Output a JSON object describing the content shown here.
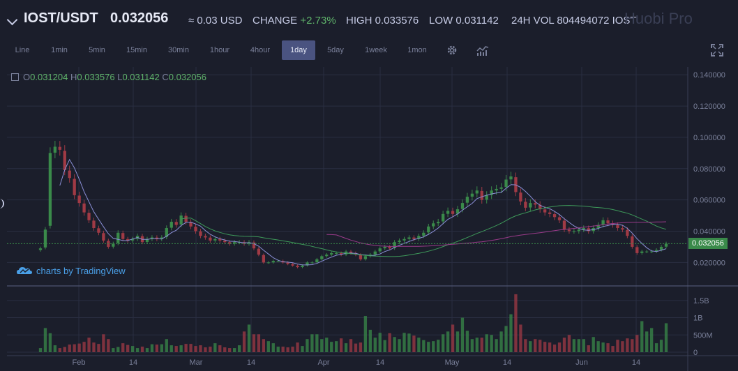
{
  "header": {
    "pair": "IOST/USDT",
    "price": "0.032056",
    "usd_approx": "≈ 0.03 USD",
    "change_label": "CHANGE",
    "change_value": "+2.73%",
    "high_label": "HIGH",
    "high_value": "0.033576",
    "low_label": "LOW",
    "low_value": "0.031142",
    "vol_label": "24H VOL",
    "vol_value": "804494072 IOST",
    "logo": "Huobi Pro"
  },
  "toolbar": {
    "timeframes": [
      "Line",
      "1min",
      "5min",
      "15min",
      "30min",
      "1hour",
      "4hour",
      "1day",
      "5day",
      "1week",
      "1mon"
    ],
    "active": "1day",
    "settings_icon": "gear-icon",
    "indicators_icon": "indicators-icon",
    "fullscreen_icon": "fullscreen-icon"
  },
  "ohlc": {
    "o_label": "O",
    "o_value": "0.031204",
    "h_label": "H",
    "h_value": "0.033576",
    "l_label": "L",
    "l_value": "0.031142",
    "c_label": "C",
    "c_value": "0.032056"
  },
  "branding": {
    "text": "charts by TradingView",
    "icon": "tradingview-cloud-icon"
  },
  "colors": {
    "up": "#3a8a4a",
    "down": "#a03a45",
    "ma_fast": "#8a8fd6",
    "ma_mid": "#3e9a5a",
    "ma_slow": "#9a3a8a",
    "grid": "#2a2e42"
  },
  "chart_data": {
    "type": "line",
    "price_axis_ticks": [
      "0.140000",
      "0.120000",
      "0.100000",
      "0.080000",
      "0.060000",
      "0.040000",
      "0.020000"
    ],
    "volume_axis_ticks": [
      "1.5B",
      "1B",
      "500M",
      "0"
    ],
    "x_ticks": [
      "Feb",
      "14",
      "Mar",
      "14",
      "Apr",
      "14",
      "May",
      "14",
      "Jun",
      "14"
    ],
    "current_price": "0.032056",
    "ylim": [
      0.005,
      0.145
    ],
    "close": [
      0.029,
      0.041,
      0.09,
      0.094,
      0.092,
      0.079,
      0.074,
      0.063,
      0.058,
      0.052,
      0.047,
      0.042,
      0.039,
      0.034,
      0.03,
      0.032,
      0.039,
      0.035,
      0.034,
      0.035,
      0.037,
      0.033,
      0.035,
      0.036,
      0.035,
      0.036,
      0.042,
      0.046,
      0.044,
      0.05,
      0.046,
      0.043,
      0.04,
      0.037,
      0.036,
      0.034,
      0.035,
      0.034,
      0.033,
      0.032,
      0.033,
      0.033,
      0.032,
      0.033,
      0.029,
      0.025,
      0.02,
      0.02,
      0.021,
      0.021,
      0.02,
      0.019,
      0.018,
      0.017,
      0.018,
      0.02,
      0.02,
      0.022,
      0.024,
      0.025,
      0.026,
      0.026,
      0.025,
      0.027,
      0.026,
      0.025,
      0.022,
      0.024,
      0.025,
      0.027,
      0.029,
      0.03,
      0.029,
      0.033,
      0.034,
      0.035,
      0.036,
      0.035,
      0.037,
      0.039,
      0.043,
      0.045,
      0.046,
      0.051,
      0.053,
      0.051,
      0.054,
      0.058,
      0.062,
      0.064,
      0.066,
      0.06,
      0.063,
      0.066,
      0.067,
      0.068,
      0.073,
      0.075,
      0.065,
      0.059,
      0.055,
      0.058,
      0.057,
      0.054,
      0.052,
      0.051,
      0.049,
      0.047,
      0.041,
      0.04,
      0.04,
      0.041,
      0.042,
      0.04,
      0.042,
      0.044,
      0.047,
      0.045,
      0.044,
      0.042,
      0.041,
      0.037,
      0.03,
      0.026,
      0.027,
      0.027,
      0.027,
      0.028,
      0.03,
      0.032
    ],
    "volume_M": [
      120,
      700,
      550,
      200,
      120,
      150,
      220,
      230,
      250,
      300,
      420,
      280,
      240,
      520,
      380,
      120,
      150,
      260,
      210,
      180,
      120,
      160,
      120,
      230,
      220,
      230,
      380,
      200,
      180,
      200,
      240,
      240,
      180,
      200,
      140,
      160,
      260,
      200,
      140,
      120,
      120,
      200,
      600,
      800,
      520,
      520,
      380,
      320,
      260,
      160,
      160,
      140,
      160,
      280,
      180,
      380,
      520,
      520,
      380,
      420,
      300,
      320,
      400,
      260,
      380,
      250,
      280,
      1050,
      650,
      420,
      560,
      350,
      550,
      440,
      380,
      560,
      540,
      480,
      420,
      350,
      300,
      320,
      360,
      520,
      600,
      800,
      600,
      1000,
      620,
      380,
      420,
      420,
      520,
      500,
      380,
      600,
      760,
      1100,
      1680,
      800,
      380,
      320,
      380,
      360,
      300,
      280,
      220,
      280,
      420,
      500,
      380,
      380,
      380,
      200,
      440,
      320,
      280,
      260,
      180,
      360,
      320,
      400,
      380,
      500,
      900,
      600,
      700,
      260,
      360,
      840
    ]
  }
}
